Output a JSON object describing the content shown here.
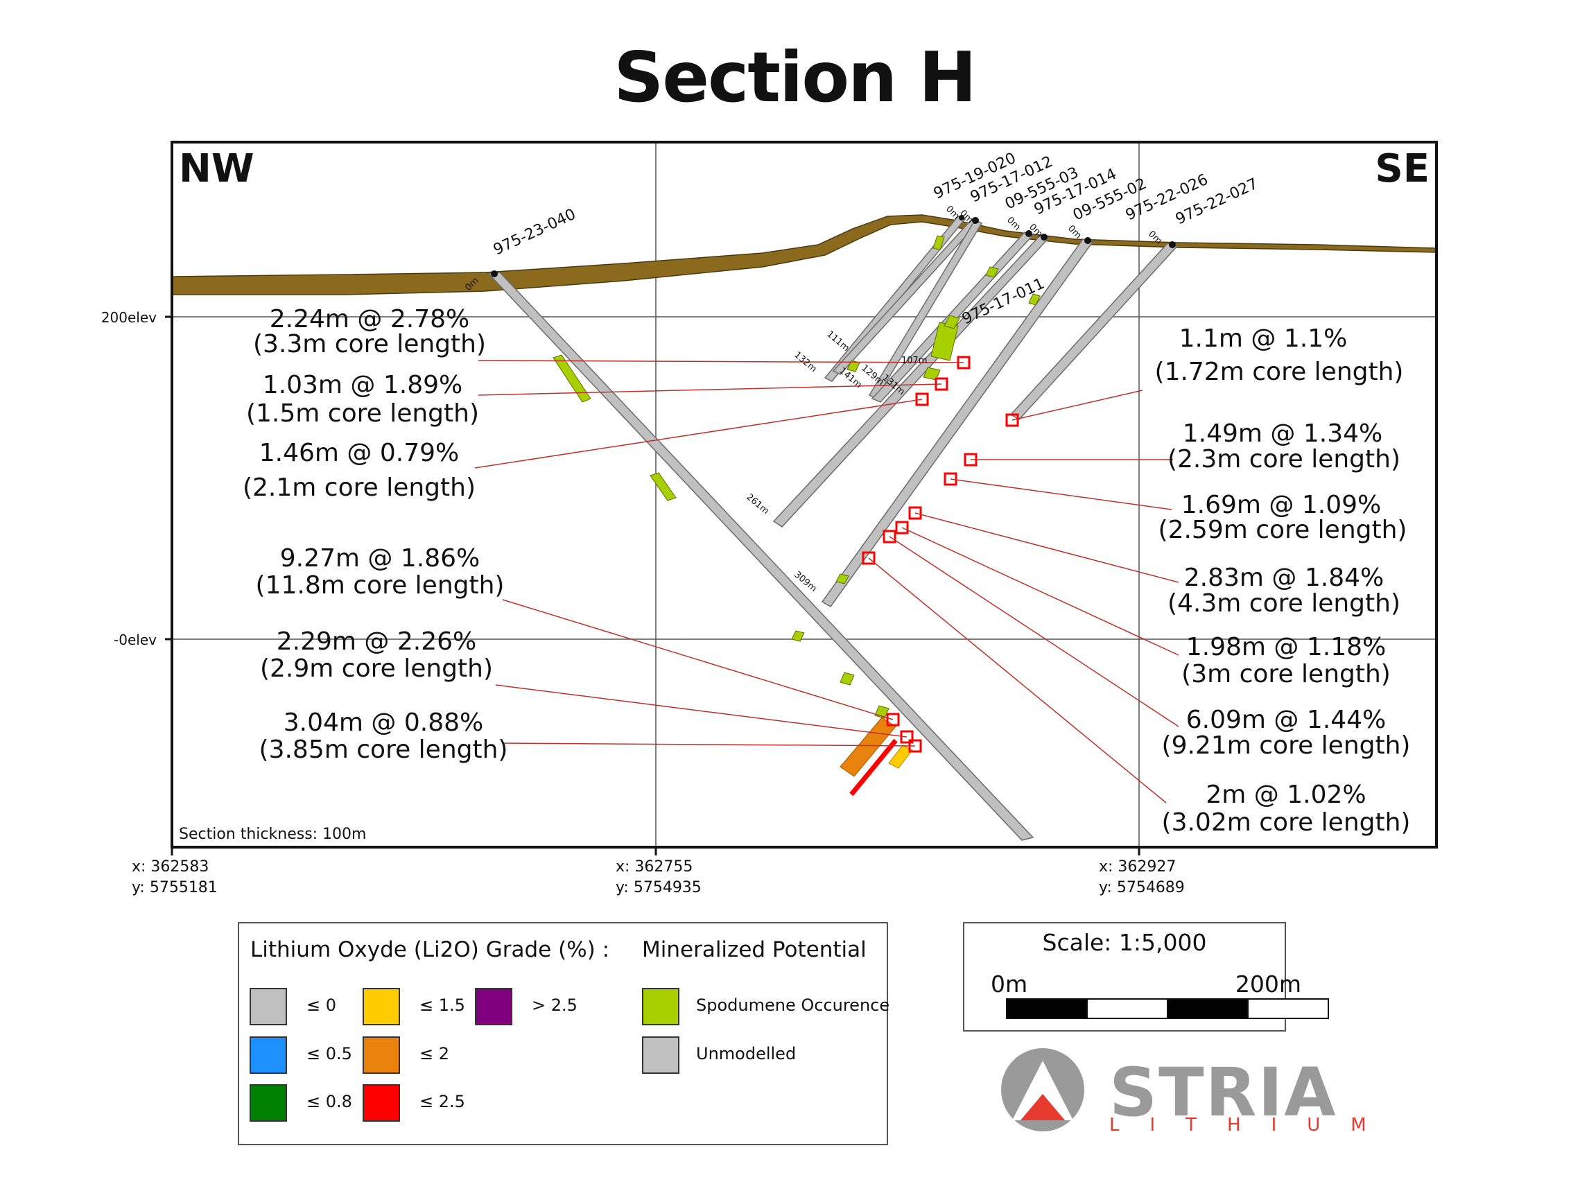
{
  "title": "Section H",
  "corners": {
    "left": "NW",
    "right": "SE"
  },
  "elevation_labels": [
    "200elev",
    "-0elev"
  ],
  "section_thickness": "Section thickness: 100m",
  "coordinates": [
    {
      "x": "x: 362583",
      "y": "y: 5755181"
    },
    {
      "x": "x: 362755",
      "y": "y: 5754935"
    },
    {
      "x": "x: 362927",
      "y": "y: 5754689"
    }
  ],
  "holes": [
    "975-23-040",
    "975-19-020",
    "975-17-012",
    "09-555-03",
    "975-17-014",
    "09-555-02",
    "975-22-026",
    "975-22-027",
    "975-17-011"
  ],
  "collar_labels": [
    "0m",
    "0m",
    "0m",
    "0m",
    "0m",
    "0m",
    "0m"
  ],
  "depth_labels": [
    "111m",
    "132m",
    "129m",
    "141m",
    "131m",
    "107m",
    "261m",
    "309m"
  ],
  "intercepts_left": [
    {
      "grade": "2.24m @ 2.78%",
      "core": "(3.3m core length)"
    },
    {
      "grade": "1.03m @ 1.89%",
      "core": "(1.5m core length)"
    },
    {
      "grade": "1.46m @ 0.79%",
      "core": "(2.1m core length)"
    },
    {
      "grade": "9.27m @ 1.86%",
      "core": "(11.8m core length)"
    },
    {
      "grade": "2.29m @ 2.26%",
      "core": "(2.9m core length)"
    },
    {
      "grade": "3.04m @ 0.88%",
      "core": "(3.85m core length)"
    }
  ],
  "intercepts_right": [
    {
      "grade": "1.1m @ 1.1%",
      "core": "(1.72m core length)"
    },
    {
      "grade": "1.49m @ 1.34%",
      "core": "(2.3m core length)"
    },
    {
      "grade": "1.69m @ 1.09%",
      "core": "(2.59m core length)"
    },
    {
      "grade": "2.83m @ 1.84%",
      "core": "(4.3m core length)"
    },
    {
      "grade": "1.98m @ 1.18%",
      "core": "(3m core length)"
    },
    {
      "grade": "6.09m @ 1.44%",
      "core": "(9.21m core length)"
    },
    {
      "grade": "2m @ 1.02%",
      "core": "(3.02m core length)"
    }
  ],
  "legend": {
    "grade_title": "Lithium Oxyde (Li2O) Grade (%) :",
    "mineral_title": "Mineralized Potential",
    "grades": [
      {
        "label": "≤ 0",
        "color": "#c0c0c0"
      },
      {
        "label": "≤ 0.5",
        "color": "#1e90ff"
      },
      {
        "label": "≤ 0.8",
        "color": "#008000"
      },
      {
        "label": "≤ 1.5",
        "color": "#ffcc00"
      },
      {
        "label": "≤ 2",
        "color": "#e8820c"
      },
      {
        "label": "≤ 2.5",
        "color": "#ff0000"
      },
      {
        "label": "> 2.5",
        "color": "#800080"
      }
    ],
    "minerals": [
      {
        "label": "Spodumene Occurence",
        "color": "#a8d000"
      },
      {
        "label": "Unmodelled",
        "color": "#c0c0c0"
      }
    ]
  },
  "scale": {
    "title": "Scale: 1:5,000",
    "start": "0m",
    "end": "200m"
  },
  "logo": {
    "name": "STRIA",
    "sub": "LITHIUM",
    "color_gray": "#9a9a9a",
    "color_red": "#e53a2d"
  },
  "colors": {
    "overburden": "#8b6a1e",
    "drillhole": "#c0c0c0",
    "spodumene": "#a8d000",
    "leader": "#c0302a"
  }
}
